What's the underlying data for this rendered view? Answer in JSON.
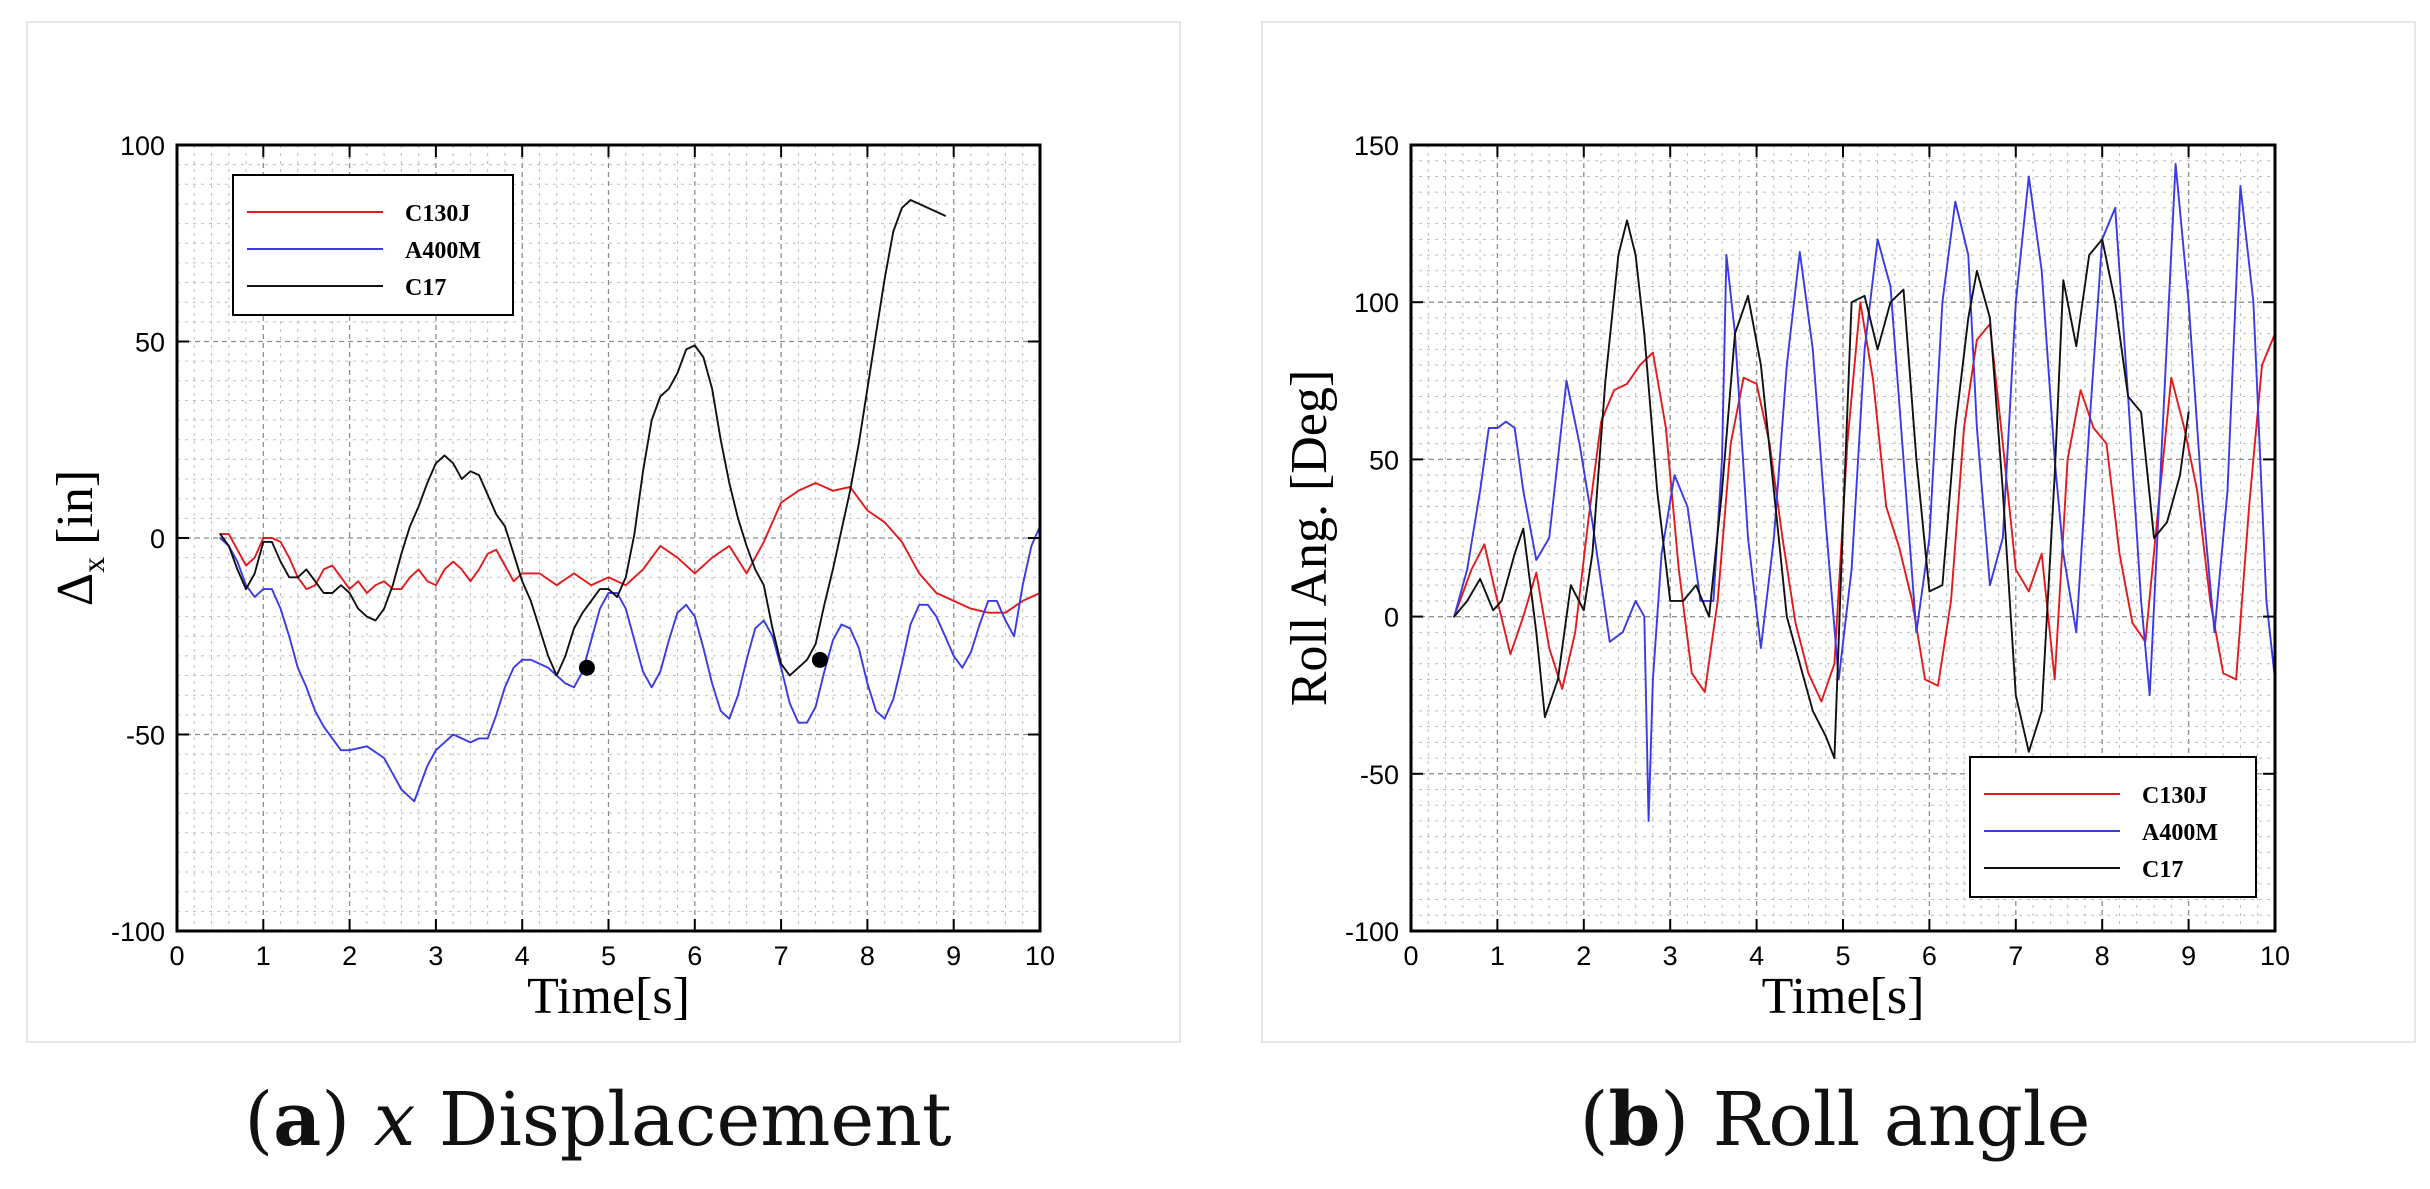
{
  "colors": {
    "C130J": "#e31a1c",
    "A400M": "#3a3ae6",
    "C17": "#111111"
  },
  "chart_data": [
    {
      "type": "line",
      "panel_label": "a",
      "title_italic": "x",
      "title_rest": "Displacement",
      "xlabel": "Time[s]",
      "ylabel_main": "Δ",
      "ylabel_sub": "x",
      "ylabel_unit": "[in]",
      "xlim": [
        0,
        10
      ],
      "ylim": [
        -100,
        100
      ],
      "xticks": [
        "0",
        "1",
        "2",
        "3",
        "4",
        "5",
        "6",
        "7",
        "8",
        "9",
        "10"
      ],
      "yticks": [
        "-100",
        "-50",
        "0",
        "50",
        "100"
      ],
      "legend_location": "top-left",
      "series": [
        {
          "name": "C130J",
          "x": [
            0.5,
            0.6,
            0.7,
            0.8,
            0.9,
            1.0,
            1.1,
            1.2,
            1.3,
            1.4,
            1.5,
            1.6,
            1.7,
            1.8,
            1.9,
            2.0,
            2.1,
            2.2,
            2.3,
            2.4,
            2.5,
            2.6,
            2.7,
            2.8,
            2.9,
            3.0,
            3.1,
            3.2,
            3.3,
            3.4,
            3.5,
            3.6,
            3.7,
            3.8,
            3.9,
            4.0,
            4.2,
            4.4,
            4.6,
            4.8,
            5.0,
            5.2,
            5.4,
            5.6,
            5.8,
            6.0,
            6.2,
            6.4,
            6.6,
            6.8,
            7.0,
            7.2,
            7.4,
            7.5,
            7.6,
            7.8,
            8.0,
            8.2,
            8.4,
            8.6,
            8.8,
            9.0,
            9.2,
            9.4,
            9.6,
            9.8,
            10.0
          ],
          "y": [
            1,
            1,
            -3,
            -7,
            -5,
            0,
            0,
            -1,
            -5,
            -10,
            -13,
            -12,
            -8,
            -7,
            -10,
            -13,
            -11,
            -14,
            -12,
            -11,
            -13,
            -13,
            -10,
            -8,
            -11,
            -12,
            -8,
            -6,
            -8,
            -11,
            -8,
            -4,
            -3,
            -7,
            -11,
            -9,
            -9,
            -12,
            -9,
            -12,
            -10,
            -12,
            -8,
            -2,
            -5,
            -9,
            -5,
            -2,
            -9,
            -1,
            9,
            12,
            14,
            13,
            12,
            13,
            7,
            4,
            -1,
            -9,
            -14,
            -16,
            -18,
            -19,
            -19,
            -16,
            -14
          ]
        },
        {
          "name": "A400M",
          "x": [
            0.5,
            0.6,
            0.7,
            0.8,
            0.9,
            1.0,
            1.1,
            1.2,
            1.3,
            1.4,
            1.5,
            1.6,
            1.7,
            1.8,
            1.9,
            2.0,
            2.2,
            2.4,
            2.5,
            2.6,
            2.7,
            2.75,
            2.8,
            2.9,
            3.0,
            3.1,
            3.2,
            3.3,
            3.4,
            3.5,
            3.6,
            3.7,
            3.8,
            3.9,
            4.0,
            4.1,
            4.2,
            4.3,
            4.4,
            4.5,
            4.6,
            4.7,
            4.8,
            4.9,
            5.0,
            5.1,
            5.2,
            5.3,
            5.4,
            5.5,
            5.6,
            5.7,
            5.8,
            5.9,
            6.0,
            6.1,
            6.2,
            6.3,
            6.4,
            6.5,
            6.6,
            6.7,
            6.8,
            6.9,
            7.0,
            7.1,
            7.2,
            7.3,
            7.4,
            7.5,
            7.6,
            7.7,
            7.8,
            7.9,
            8.0,
            8.1,
            8.2,
            8.3,
            8.4,
            8.5,
            8.6,
            8.7,
            8.8,
            8.9,
            9.0,
            9.1,
            9.2,
            9.3,
            9.4,
            9.5,
            9.6,
            9.7,
            9.8,
            9.9,
            10.0
          ],
          "y": [
            0,
            -2,
            -6,
            -12,
            -15,
            -13,
            -13,
            -18,
            -25,
            -33,
            -38,
            -44,
            -48,
            -51,
            -54,
            -54,
            -53,
            -56,
            -60,
            -64,
            -66,
            -67,
            -64,
            -58,
            -54,
            -52,
            -50,
            -51,
            -52,
            -51,
            -51,
            -45,
            -38,
            -33,
            -31,
            -31,
            -32,
            -33,
            -35,
            -37,
            -38,
            -34,
            -26,
            -18,
            -14,
            -14,
            -18,
            -26,
            -34,
            -38,
            -34,
            -26,
            -19,
            -17,
            -20,
            -28,
            -37,
            -44,
            -46,
            -40,
            -31,
            -23,
            -21,
            -25,
            -33,
            -42,
            -47,
            -47,
            -43,
            -34,
            -26,
            -22,
            -23,
            -28,
            -37,
            -44,
            -46,
            -41,
            -32,
            -22,
            -17,
            -17,
            -20,
            -25,
            -30,
            -33,
            -29,
            -22,
            -16,
            -16,
            -21,
            -25,
            -12,
            -2,
            3
          ]
        },
        {
          "name": "C17",
          "x": [
            0.5,
            0.6,
            0.7,
            0.8,
            0.9,
            1.0,
            1.1,
            1.2,
            1.3,
            1.4,
            1.5,
            1.6,
            1.7,
            1.8,
            1.9,
            2.0,
            2.1,
            2.2,
            2.3,
            2.4,
            2.5,
            2.6,
            2.7,
            2.8,
            2.9,
            3.0,
            3.1,
            3.2,
            3.3,
            3.4,
            3.5,
            3.6,
            3.7,
            3.8,
            3.9,
            4.0,
            4.1,
            4.2,
            4.3,
            4.4,
            4.5,
            4.6,
            4.7,
            4.8,
            4.9,
            5.0,
            5.1,
            5.2,
            5.3,
            5.4,
            5.5,
            5.6,
            5.7,
            5.8,
            5.9,
            6.0,
            6.1,
            6.2,
            6.3,
            6.4,
            6.5,
            6.6,
            6.7,
            6.8,
            6.9,
            7.0,
            7.1,
            7.2,
            7.3,
            7.4,
            7.5,
            7.6,
            7.7,
            7.8,
            7.9,
            8.0,
            8.1,
            8.2,
            8.3,
            8.4,
            8.5,
            8.6,
            8.7,
            8.8,
            8.9
          ],
          "y": [
            1,
            -2,
            -8,
            -13,
            -9,
            -1,
            -1,
            -6,
            -10,
            -10,
            -8,
            -11,
            -14,
            -14,
            -12,
            -14,
            -18,
            -20,
            -21,
            -18,
            -12,
            -4,
            3,
            8,
            14,
            19,
            21,
            19,
            15,
            17,
            16,
            11,
            6,
            3,
            -4,
            -11,
            -16,
            -23,
            -30,
            -35,
            -30,
            -23,
            -19,
            -16,
            -13,
            -13,
            -15,
            -10,
            1,
            17,
            30,
            36,
            38,
            42,
            48,
            49,
            46,
            38,
            25,
            14,
            5,
            -2,
            -8,
            -12,
            -23,
            -32,
            -35,
            -33,
            -31,
            -27,
            -17,
            -8,
            2,
            12,
            24,
            38,
            52,
            66,
            78,
            84,
            86,
            85,
            84,
            83,
            82
          ]
        }
      ],
      "markers": [
        {
          "x": 4.75,
          "y": -33
        },
        {
          "x": 7.45,
          "y": -31
        }
      ]
    },
    {
      "type": "line",
      "panel_label": "b",
      "title_italic": "",
      "title_rest": "Roll angle",
      "xlabel": "Time[s]",
      "ylabel_main": "Roll Ang. [Deg]",
      "ylabel_sub": "",
      "ylabel_unit": "",
      "xlim": [
        0,
        10
      ],
      "ylim": [
        -100,
        150
      ],
      "xticks": [
        "0",
        "1",
        "2",
        "3",
        "4",
        "5",
        "6",
        "7",
        "8",
        "9",
        "10"
      ],
      "yticks": [
        "-100",
        "-50",
        "0",
        "50",
        "100",
        "150"
      ],
      "legend_location": "bottom-right",
      "series": [
        {
          "name": "C130J",
          "x": [
            0.5,
            0.7,
            0.85,
            1.0,
            1.15,
            1.3,
            1.45,
            1.6,
            1.75,
            1.9,
            2.05,
            2.2,
            2.35,
            2.5,
            2.65,
            2.8,
            2.95,
            3.1,
            3.25,
            3.4,
            3.55,
            3.7,
            3.85,
            4.0,
            4.15,
            4.3,
            4.45,
            4.6,
            4.75,
            4.9,
            5.05,
            5.2,
            5.35,
            5.5,
            5.65,
            5.8,
            5.95,
            6.1,
            6.25,
            6.4,
            6.55,
            6.7,
            6.85,
            7.0,
            7.15,
            7.3,
            7.45,
            7.6,
            7.75,
            7.9,
            8.05,
            8.2,
            8.35,
            8.5,
            8.65,
            8.8,
            8.95,
            9.1,
            9.25,
            9.4,
            9.55,
            9.7,
            9.85,
            10.0
          ],
          "y": [
            0,
            15,
            23,
            5,
            -12,
            0,
            14,
            -10,
            -23,
            -5,
            30,
            62,
            72,
            74,
            80,
            84,
            60,
            15,
            -18,
            -24,
            5,
            55,
            76,
            74,
            55,
            25,
            -2,
            -18,
            -27,
            -15,
            55,
            100,
            75,
            35,
            22,
            5,
            -20,
            -22,
            5,
            60,
            88,
            93,
            55,
            15,
            8,
            20,
            -20,
            50,
            72,
            60,
            55,
            20,
            -2,
            -8,
            35,
            76,
            60,
            40,
            5,
            -18,
            -20,
            35,
            80,
            90
          ]
        },
        {
          "name": "A400M",
          "x": [
            0.5,
            0.65,
            0.8,
            0.9,
            1.0,
            1.1,
            1.2,
            1.3,
            1.45,
            1.6,
            1.8,
            1.95,
            2.1,
            2.3,
            2.45,
            2.6,
            2.7,
            2.75,
            2.8,
            2.9,
            3.05,
            3.2,
            3.35,
            3.5,
            3.6,
            3.65,
            3.75,
            3.9,
            4.05,
            4.2,
            4.35,
            4.5,
            4.65,
            4.8,
            4.95,
            5.1,
            5.25,
            5.4,
            5.55,
            5.7,
            5.85,
            6.0,
            6.15,
            6.3,
            6.45,
            6.55,
            6.7,
            6.85,
            7.0,
            7.15,
            7.3,
            7.45,
            7.55,
            7.7,
            7.85,
            8.0,
            8.15,
            8.3,
            8.45,
            8.55,
            8.7,
            8.85,
            9.0,
            9.15,
            9.3,
            9.45,
            9.6,
            9.75,
            9.9,
            10.0
          ],
          "y": [
            0,
            15,
            40,
            60,
            60,
            62,
            60,
            40,
            18,
            25,
            75,
            55,
            30,
            -8,
            -5,
            5,
            0,
            -65,
            -20,
            20,
            45,
            35,
            5,
            5,
            50,
            115,
            90,
            25,
            -10,
            25,
            80,
            116,
            85,
            30,
            -20,
            15,
            85,
            120,
            105,
            50,
            -5,
            25,
            100,
            132,
            115,
            60,
            10,
            25,
            100,
            140,
            110,
            50,
            20,
            -5,
            60,
            120,
            130,
            70,
            5,
            -25,
            60,
            144,
            100,
            40,
            -5,
            40,
            137,
            100,
            5,
            -20
          ]
        },
        {
          "name": "C17",
          "x": [
            0.5,
            0.65,
            0.8,
            0.95,
            1.05,
            1.2,
            1.3,
            1.45,
            1.55,
            1.7,
            1.85,
            2.0,
            2.1,
            2.25,
            2.4,
            2.5,
            2.6,
            2.7,
            2.85,
            3.0,
            3.15,
            3.3,
            3.45,
            3.6,
            3.75,
            3.9,
            4.05,
            4.2,
            4.35,
            4.5,
            4.65,
            4.8,
            4.9,
            5.0,
            5.1,
            5.25,
            5.4,
            5.55,
            5.7,
            5.85,
            6.0,
            6.15,
            6.3,
            6.45,
            6.55,
            6.7,
            6.85,
            7.0,
            7.15,
            7.3,
            7.45,
            7.55,
            7.7,
            7.85,
            8.0,
            8.15,
            8.3,
            8.45,
            8.6,
            8.75,
            8.9,
            9.0
          ],
          "y": [
            0,
            5,
            12,
            2,
            5,
            20,
            28,
            -5,
            -32,
            -20,
            10,
            2,
            20,
            75,
            115,
            126,
            115,
            90,
            40,
            5,
            5,
            10,
            0,
            40,
            90,
            102,
            80,
            40,
            0,
            -15,
            -30,
            -38,
            -45,
            30,
            100,
            102,
            85,
            100,
            104,
            50,
            8,
            10,
            60,
            95,
            110,
            95,
            40,
            -25,
            -43,
            -30,
            45,
            107,
            86,
            115,
            120,
            100,
            70,
            65,
            25,
            30,
            45,
            65
          ]
        }
      ],
      "markers": []
    }
  ]
}
